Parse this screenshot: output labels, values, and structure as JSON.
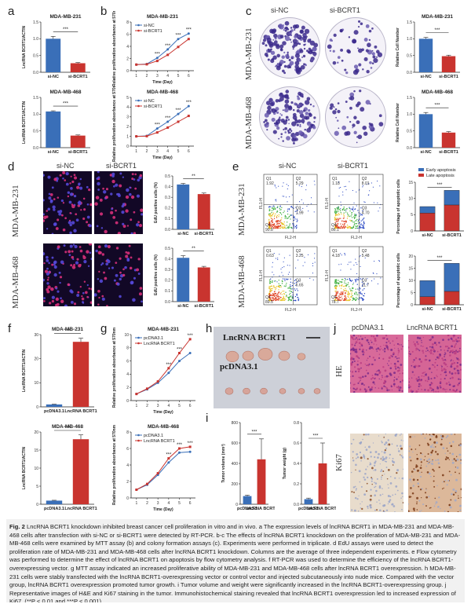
{
  "panels": {
    "a": {
      "letter": "a",
      "charts": [
        {
          "title": "MDA-MB-231",
          "ylabel": "LncRNA BCRT1/ACTIN",
          "categories": [
            "si-NC",
            "si-BCRT1"
          ],
          "values": [
            1.0,
            0.27
          ],
          "errors": [
            0.07,
            0.02
          ],
          "colors": [
            "#3a6fb8",
            "#c9342f"
          ],
          "ylim": [
            0,
            1.5
          ],
          "yticks": [
            "0.0",
            "0.5",
            "1.0",
            "1.5"
          ],
          "sig": "***"
        },
        {
          "title": "MDA-MB-468",
          "ylabel": "LncRNA BCRT1/ACTIN",
          "categories": [
            "si-NC",
            "si-BCRT1"
          ],
          "values": [
            1.08,
            0.36
          ],
          "errors": [
            0.02,
            0.02
          ],
          "colors": [
            "#3a6fb8",
            "#c9342f"
          ],
          "ylim": [
            0,
            1.5
          ],
          "yticks": [
            "0.0",
            "0.5",
            "1.0",
            "1.5"
          ],
          "sig": "***"
        }
      ]
    },
    "b": {
      "letter": "b",
      "charts": [
        {
          "title": "MDA-MB-231",
          "ylabel": "Relative proliferation absorbance at 570nm",
          "xlabel": "Time  (Day)",
          "x": [
            1,
            2,
            3,
            4,
            5,
            6
          ],
          "series": [
            {
              "name": "si-NC",
              "values": [
                1,
                1.1,
                2.1,
                3.5,
                5.2,
                6.1
              ],
              "color": "#3a6fb8"
            },
            {
              "name": "si-BCRT1",
              "values": [
                1,
                1.05,
                1.6,
                2.6,
                3.9,
                5.2
              ],
              "color": "#c9342f"
            }
          ],
          "ylim": [
            0,
            8
          ],
          "yticks": [
            "0",
            "2",
            "4",
            "6",
            "8"
          ],
          "sig": [
            "***",
            "***",
            "***",
            "***"
          ]
        },
        {
          "title": "MDA-MB-468",
          "ylabel": "Relative proliferation absorbance at 570nm",
          "xlabel": "Time  (Day)",
          "x": [
            1,
            2,
            3,
            4,
            5,
            6
          ],
          "series": [
            {
              "name": "si-NC",
              "values": [
                1,
                1.05,
                1.8,
                2.5,
                3.3,
                4.1
              ],
              "color": "#3a6fb8"
            },
            {
              "name": "si-BCRT1",
              "values": [
                1,
                1.02,
                1.4,
                1.9,
                2.5,
                3.1
              ],
              "color": "#c9342f"
            }
          ],
          "ylim": [
            0,
            5
          ],
          "yticks": [
            "0",
            "1",
            "2",
            "3",
            "4",
            "5"
          ],
          "sig": [
            "***",
            "***",
            "***",
            "***"
          ]
        }
      ]
    },
    "c": {
      "letter": "c",
      "col_labels": [
        "si-NC",
        "si-BCRT1"
      ],
      "row_labels": [
        "MDA-MB-231",
        "MDA-MB-468"
      ],
      "charts": [
        {
          "title": "MDA-MB-231",
          "ylabel": "Relative Cell Number",
          "categories": [
            "si-NC",
            "si-BCRT1"
          ],
          "values": [
            1.0,
            0.48
          ],
          "errors": [
            0.04,
            0.03
          ],
          "colors": [
            "#3a6fb8",
            "#c9342f"
          ],
          "ylim": [
            0,
            1.5
          ],
          "yticks": [
            "0.0",
            "0.5",
            "1.0",
            "1.5"
          ],
          "sig": "***"
        },
        {
          "title": "MDA-MB-468",
          "ylabel": "Relative Cell Number",
          "categories": [
            "si-NC",
            "si-BCRT1"
          ],
          "values": [
            1.0,
            0.45
          ],
          "errors": [
            0.05,
            0.03
          ],
          "colors": [
            "#3a6fb8",
            "#c9342f"
          ],
          "ylim": [
            0,
            1.5
          ],
          "yticks": [
            "0.0",
            "0.5",
            "1.0",
            "1.5"
          ],
          "sig": "***"
        }
      ]
    },
    "d": {
      "letter": "d",
      "col_labels": [
        "si-NC",
        "si-BCRT1"
      ],
      "row_labels": [
        "MDA-MB-231",
        "MDA-MB-468"
      ],
      "charts": [
        {
          "ylabel": "EdU positive cells (%)",
          "categories": [
            "si-NC",
            "si-BCRT1"
          ],
          "values": [
            0.42,
            0.33
          ],
          "errors": [
            0.01,
            0.01
          ],
          "colors": [
            "#3a6fb8",
            "#c9342f"
          ],
          "ylim": [
            0,
            0.5
          ],
          "yticks": [
            "0.0",
            "0.1",
            "0.2",
            "0.3",
            "0.4",
            "0.5"
          ],
          "sig": "**"
        },
        {
          "ylabel": "EdU positive cells (%)",
          "categories": [
            "si-NC",
            "si-BCRT1"
          ],
          "values": [
            0.41,
            0.32
          ],
          "errors": [
            0.02,
            0.01
          ],
          "colors": [
            "#3a6fb8",
            "#c9342f"
          ],
          "ylim": [
            0,
            0.5
          ],
          "yticks": [
            "0.0",
            "0.1",
            "0.2",
            "0.3",
            "0.4",
            "0.5"
          ],
          "sig": "**"
        }
      ]
    },
    "e": {
      "letter": "e",
      "col_labels": [
        "si-NC",
        "si-BCRT1"
      ],
      "row_labels": [
        "MDA-MB-231",
        "MDA-MB-468"
      ],
      "flow": [
        {
          "q1": "Q1\n1.92",
          "q2": "Q2\n5.29",
          "q3": "Q3\n1.99",
          "q4": "Q4\n90.8"
        },
        {
          "q1": "Q1\n1.18",
          "q2": "Q2\n8.01",
          "q3": "Q3\n4.70",
          "q4": "Q4\n86.1"
        },
        {
          "q1": "Q1\n0.63",
          "q2": "Q2\n3.25",
          "q3": "Q3\n6.65",
          "q4": "Q4\n89.5"
        },
        {
          "q1": "Q1\n4.18",
          "q2": "Q2\n5.48",
          "q3": "Q3\n11.7",
          "q4": "Q4\n78.7"
        }
      ],
      "flow_axis": {
        "x": "FL2-H",
        "y": "FL1-H"
      },
      "charts": [
        {
          "ylabel": "Percentage of apoptotic cells",
          "categories": [
            "si-NC",
            "si-BCRT1"
          ],
          "series": [
            {
              "name": "Late apoptosis",
              "values": [
                5.5,
                8.0
              ],
              "color": "#c9342f"
            },
            {
              "name": "Early apoptosis",
              "values": [
                2.0,
                4.5
              ],
              "color": "#3a6fb8"
            }
          ],
          "ylim": [
            0,
            15
          ],
          "yticks": [
            "0",
            "5",
            "10",
            "15"
          ],
          "sig": "***"
        },
        {
          "ylabel": "Percentage of apoptotic cells",
          "categories": [
            "si-NC",
            "si-BCRT1"
          ],
          "series": [
            {
              "name": "Late apoptosis",
              "values": [
                3.3,
                5.5
              ],
              "color": "#c9342f"
            },
            {
              "name": "Early apoptosis",
              "values": [
                6.6,
                11.5
              ],
              "color": "#3a6fb8"
            }
          ],
          "ylim": [
            0,
            20
          ],
          "yticks": [
            "0",
            "5",
            "10",
            "15",
            "20"
          ],
          "sig": "***"
        }
      ],
      "legend": [
        "Early apoptosis",
        "Late apoptosis"
      ]
    },
    "f": {
      "letter": "f",
      "charts": [
        {
          "title": "MDA-MB-231",
          "ylabel": "LncRNA BCRT1/ACTIN",
          "categories": [
            "pcDNA3.1",
            "LncRNA BCRT1"
          ],
          "values": [
            1.0,
            27
          ],
          "errors": [
            0.1,
            1.5
          ],
          "colors": [
            "#3a6fb8",
            "#c9342f"
          ],
          "ylim": [
            0,
            30
          ],
          "yticks": [
            "0",
            "10",
            "20",
            "30"
          ],
          "sig": "***"
        },
        {
          "title": "MDA-MB-468",
          "ylabel": "LncRNA BCRT1/ACTIN",
          "categories": [
            "pcDNA3.1",
            "LncRNA BCRT1"
          ],
          "values": [
            1.0,
            18
          ],
          "errors": [
            0.1,
            1.2
          ],
          "colors": [
            "#3a6fb8",
            "#c9342f"
          ],
          "ylim": [
            0,
            20
          ],
          "yticks": [
            "0",
            "5",
            "10",
            "15",
            "20"
          ],
          "sig": "***"
        }
      ]
    },
    "g": {
      "letter": "g",
      "charts": [
        {
          "title": "MDA-MB-231",
          "ylabel": "Relative proliferation absorbance at 570nm",
          "xlabel": "Time  (Day)",
          "x": [
            1,
            2,
            3,
            4,
            5,
            6
          ],
          "series": [
            {
              "name": "pcDNA3.1",
              "values": [
                1,
                1.7,
                2.7,
                4.2,
                6.0,
                7.2
              ],
              "color": "#3a6fb8"
            },
            {
              "name": "LncRNA BCRT1",
              "values": [
                1,
                1.8,
                2.9,
                4.9,
                7.2,
                9.3
              ],
              "color": "#c9342f"
            }
          ],
          "ylim": [
            0,
            10
          ],
          "yticks": [
            "0",
            "2",
            "4",
            "6",
            "8",
            "10"
          ],
          "sig": [
            "***",
            "***",
            "***"
          ]
        },
        {
          "title": "MDA-MB-468",
          "ylabel": "Relative proliferation absorbance at 570nm",
          "xlabel": "Time  (Day)",
          "x": [
            1,
            2,
            3,
            4,
            5,
            6
          ],
          "series": [
            {
              "name": "pcDNA3.1",
              "values": [
                1,
                1.6,
                2.8,
                4.3,
                5.5,
                5.6
              ],
              "color": "#3a6fb8"
            },
            {
              "name": "LncRNA BCRT1",
              "values": [
                1,
                1.7,
                3.0,
                4.8,
                6.0,
                6.2
              ],
              "color": "#c9342f"
            }
          ],
          "ylim": [
            0,
            8
          ],
          "yticks": [
            "0",
            "2",
            "4",
            "6",
            "8"
          ],
          "sig": [
            "***",
            "***",
            "***"
          ]
        }
      ]
    },
    "h": {
      "letter": "h",
      "top_label": "LncRNA BCRT1",
      "bottom_label": "pcDNA3.1"
    },
    "i": {
      "letter": "i",
      "charts": [
        {
          "ylabel": "Tumor volume (mm³)",
          "categories": [
            "pcDNA3.1",
            "LncRNA BCRT1"
          ],
          "values": [
            80,
            440
          ],
          "errors": [
            10,
            200
          ],
          "colors": [
            "#3a6fb8",
            "#c9342f"
          ],
          "ylim": [
            0,
            800
          ],
          "yticks": [
            "0",
            "200",
            "400",
            "600",
            "800"
          ],
          "sig": "***"
        },
        {
          "ylabel": "Tumor weight (g)",
          "categories": [
            "pcDNA3.1",
            "LncRNA BCRT1"
          ],
          "values": [
            0.05,
            0.4
          ],
          "errors": [
            0.01,
            0.2
          ],
          "colors": [
            "#3a6fb8",
            "#c9342f"
          ],
          "ylim": [
            0,
            0.8
          ],
          "yticks": [
            "0.0",
            "0.2",
            "0.4",
            "0.6",
            "0.8"
          ],
          "sig": "***"
        }
      ]
    },
    "j": {
      "letter": "j",
      "col_labels": [
        "pcDNA3.1",
        "LncRNA BCRT1"
      ],
      "row_labels": [
        "HE",
        "Ki67"
      ]
    }
  },
  "caption": {
    "title": "Fig. 2",
    "heading": "LncRNA BCRT1 knockdown inhibited breast cancer cell proliferation in vitro and in vivo.",
    "text": " a The expression levels of lncRNA BCRT1 in MDA-MB-231 and MDA-MB-468 cells after transfection with si-NC or si-BCRT1 were detected by RT-PCR. b-c The effects of lncRNA BCRT1 knockdown on the proliferation of MDA-MB-231 and MDA-MB-468 cells were examined by MTT assay (b) and colony formation assays (c). Experiments were performed in triplicate. d EdU assays were used to detect the proliferation rate of MDA-MB-231 and MDA-MB-468 cells after lncRNA BCRT1 knockdown. Columns are the average of three independent experiments. e Flow cytometry was performed to determine the effect of lncRNA BCRT1 on apoptosis by flow cytometry analysis. f RT-PCR was used to determine the efficiency of the lncRNA BCRT1-overexpressing vector. g MTT assay indicated an increased proliferative ability of MDA-MB-231 and MDA-MB-468 cells after lncRNA BCRT1 overexpression. h MDA-MB-231 cells were stably transfected with the lncRNA BCRT1-overexpressing vector or control vector and injected subcutaneously into nude mice. Compared with the vector group, lncRNA BCRT1 overexpression promoted tumor growth. i Tumor volume and weight were significantly increased in the lncRNA BCRT1-overexpressing group. j Representative images of H&E and Ki67 staining in the tumor. Immunohistochemical staining revealed that lncRNA BCRT1 overexpression led to increased expression of Ki67. (**P < 0.01 and ***P < 0.001)"
  }
}
